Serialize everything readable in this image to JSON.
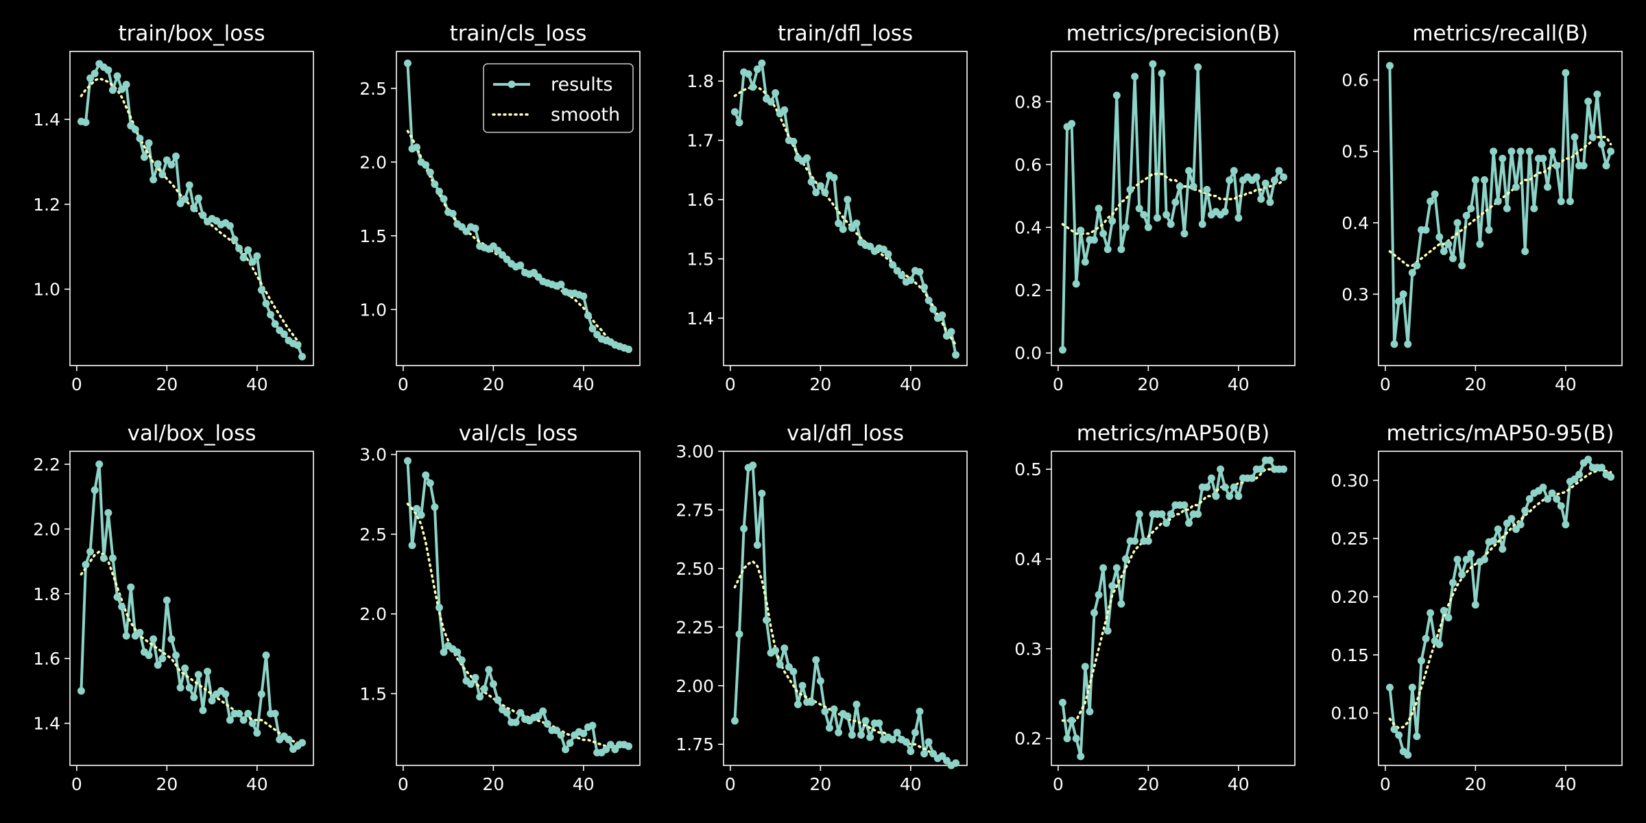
{
  "chart_data": {
    "type": "line",
    "colors": {
      "results": "#8dd3c7",
      "smooth": "#ffffb3",
      "background": "#000000",
      "axes": "#ffffff"
    },
    "legend": {
      "panel": "train/cls_loss",
      "placement": "top-right",
      "entries": [
        "results",
        "smooth"
      ]
    },
    "x": [
      1,
      2,
      3,
      4,
      5,
      6,
      7,
      8,
      9,
      10,
      11,
      12,
      13,
      14,
      15,
      16,
      17,
      18,
      19,
      20,
      21,
      22,
      23,
      24,
      25,
      26,
      27,
      28,
      29,
      30,
      31,
      32,
      33,
      34,
      35,
      36,
      37,
      38,
      39,
      40,
      41,
      42,
      43,
      44,
      45,
      46,
      47,
      48,
      49,
      50
    ],
    "xticks": [
      0,
      20,
      40
    ],
    "xlim": [
      -1.5,
      52.5
    ],
    "panels": [
      {
        "title": "train/box_loss",
        "ylim": [
          0.82,
          1.56
        ],
        "yticks": [
          "1.0",
          "1.2",
          "1.4"
        ],
        "results": [
          1.395,
          1.393,
          1.497,
          1.508,
          1.531,
          1.523,
          1.516,
          1.469,
          1.502,
          1.471,
          1.482,
          1.385,
          1.376,
          1.355,
          1.311,
          1.344,
          1.258,
          1.295,
          1.27,
          1.304,
          1.293,
          1.313,
          1.202,
          1.212,
          1.245,
          1.19,
          1.214,
          1.174,
          1.159,
          1.166,
          1.161,
          1.152,
          1.156,
          1.149,
          1.117,
          1.096,
          1.074,
          1.092,
          1.064,
          1.078,
          0.998,
          0.966,
          0.94,
          0.918,
          0.903,
          0.894,
          0.879,
          0.872,
          0.868,
          0.841
        ],
        "smooth": [
          1.455,
          1.47,
          1.48,
          1.492,
          1.496,
          1.493,
          1.488,
          1.48,
          1.469,
          1.452,
          1.428,
          1.404,
          1.38,
          1.356,
          1.336,
          1.316,
          1.298,
          1.284,
          1.272,
          1.26,
          1.249,
          1.236,
          1.222,
          1.21,
          1.2,
          1.19,
          1.18,
          1.17,
          1.16,
          1.15,
          1.141,
          1.132,
          1.124,
          1.116,
          1.107,
          1.097,
          1.084,
          1.068,
          1.05,
          1.031,
          1.012,
          0.993,
          0.974,
          0.956,
          0.939,
          0.922,
          0.906,
          0.892,
          0.878,
          0.866
        ]
      },
      {
        "title": "train/cls_loss",
        "ylim": [
          0.62,
          2.75
        ],
        "yticks": [
          "1.0",
          "1.5",
          "2.0",
          "2.5"
        ],
        "results": [
          2.67,
          2.09,
          2.1,
          2.0,
          1.98,
          1.93,
          1.85,
          1.8,
          1.75,
          1.66,
          1.65,
          1.58,
          1.56,
          1.53,
          1.56,
          1.55,
          1.43,
          1.42,
          1.41,
          1.43,
          1.4,
          1.37,
          1.34,
          1.31,
          1.29,
          1.3,
          1.25,
          1.24,
          1.25,
          1.22,
          1.19,
          1.18,
          1.17,
          1.16,
          1.17,
          1.12,
          1.11,
          1.11,
          1.1,
          1.09,
          0.96,
          0.87,
          0.83,
          0.8,
          0.79,
          0.78,
          0.76,
          0.75,
          0.74,
          0.73
        ],
        "smooth": [
          2.21,
          2.16,
          2.1,
          2.03,
          1.96,
          1.9,
          1.84,
          1.78,
          1.72,
          1.68,
          1.63,
          1.59,
          1.56,
          1.53,
          1.51,
          1.48,
          1.46,
          1.44,
          1.41,
          1.39,
          1.37,
          1.35,
          1.33,
          1.31,
          1.29,
          1.28,
          1.26,
          1.24,
          1.23,
          1.21,
          1.2,
          1.18,
          1.17,
          1.15,
          1.13,
          1.11,
          1.09,
          1.07,
          1.04,
          1.01,
          0.97,
          0.93,
          0.89,
          0.86,
          0.82,
          0.79,
          0.77,
          0.75,
          0.74,
          0.73
        ]
      },
      {
        "title": "train/dfl_loss",
        "ylim": [
          1.32,
          1.85
        ],
        "yticks": [
          "1.4",
          "1.5",
          "1.6",
          "1.7",
          "1.8"
        ],
        "results": [
          1.748,
          1.73,
          1.815,
          1.812,
          1.79,
          1.82,
          1.83,
          1.77,
          1.765,
          1.78,
          1.745,
          1.751,
          1.7,
          1.698,
          1.67,
          1.665,
          1.67,
          1.63,
          1.612,
          1.623,
          1.612,
          1.641,
          1.637,
          1.56,
          1.55,
          1.6,
          1.552,
          1.56,
          1.528,
          1.523,
          1.521,
          1.513,
          1.518,
          1.516,
          1.508,
          1.49,
          1.48,
          1.472,
          1.461,
          1.464,
          1.48,
          1.478,
          1.452,
          1.43,
          1.415,
          1.4,
          1.405,
          1.37,
          1.377,
          1.338
        ],
        "smooth": [
          1.775,
          1.78,
          1.785,
          1.788,
          1.79,
          1.79,
          1.785,
          1.778,
          1.768,
          1.755,
          1.74,
          1.723,
          1.706,
          1.69,
          1.676,
          1.663,
          1.651,
          1.64,
          1.629,
          1.619,
          1.61,
          1.6,
          1.59,
          1.58,
          1.57,
          1.561,
          1.552,
          1.543,
          1.535,
          1.528,
          1.522,
          1.516,
          1.511,
          1.505,
          1.499,
          1.493,
          1.486,
          1.479,
          1.472,
          1.466,
          1.46,
          1.453,
          1.444,
          1.433,
          1.42,
          1.406,
          1.392,
          1.378,
          1.366,
          1.355
        ]
      },
      {
        "title": "metrics/precision(B)",
        "ylim": [
          -0.04,
          0.96
        ],
        "yticks": [
          "0.0",
          "0.2",
          "0.4",
          "0.6",
          "0.8"
        ],
        "results": [
          0.01,
          0.72,
          0.73,
          0.22,
          0.39,
          0.29,
          0.36,
          0.36,
          0.46,
          0.38,
          0.33,
          0.42,
          0.82,
          0.33,
          0.4,
          0.52,
          0.88,
          0.46,
          0.44,
          0.4,
          0.92,
          0.43,
          0.89,
          0.44,
          0.41,
          0.48,
          0.53,
          0.38,
          0.58,
          0.53,
          0.91,
          0.41,
          0.52,
          0.44,
          0.45,
          0.44,
          0.45,
          0.55,
          0.58,
          0.43,
          0.55,
          0.56,
          0.55,
          0.56,
          0.49,
          0.54,
          0.48,
          0.55,
          0.58,
          0.56
        ],
        "smooth": [
          0.41,
          0.4,
          0.39,
          0.38,
          0.38,
          0.38,
          0.38,
          0.39,
          0.4,
          0.41,
          0.43,
          0.44,
          0.46,
          0.48,
          0.49,
          0.51,
          0.53,
          0.54,
          0.55,
          0.56,
          0.57,
          0.57,
          0.57,
          0.56,
          0.55,
          0.55,
          0.54,
          0.53,
          0.53,
          0.52,
          0.52,
          0.51,
          0.51,
          0.5,
          0.5,
          0.49,
          0.49,
          0.49,
          0.49,
          0.5,
          0.5,
          0.51,
          0.51,
          0.52,
          0.52,
          0.53,
          0.53,
          0.54,
          0.54,
          0.55
        ]
      },
      {
        "title": "metrics/recall(B)",
        "ylim": [
          0.2,
          0.64
        ],
        "yticks": [
          "0.3",
          "0.4",
          "0.5",
          "0.6"
        ],
        "results": [
          0.62,
          0.23,
          0.29,
          0.3,
          0.23,
          0.33,
          0.34,
          0.39,
          0.39,
          0.43,
          0.44,
          0.38,
          0.36,
          0.37,
          0.35,
          0.4,
          0.34,
          0.41,
          0.42,
          0.46,
          0.37,
          0.46,
          0.39,
          0.5,
          0.43,
          0.49,
          0.42,
          0.5,
          0.45,
          0.5,
          0.36,
          0.5,
          0.42,
          0.49,
          0.49,
          0.45,
          0.5,
          0.48,
          0.43,
          0.61,
          0.43,
          0.52,
          0.48,
          0.48,
          0.57,
          0.52,
          0.58,
          0.51,
          0.48,
          0.5
        ],
        "smooth": [
          0.36,
          0.355,
          0.35,
          0.345,
          0.34,
          0.34,
          0.345,
          0.35,
          0.355,
          0.36,
          0.365,
          0.37,
          0.37,
          0.375,
          0.38,
          0.385,
          0.39,
          0.395,
          0.4,
          0.405,
          0.41,
          0.415,
          0.42,
          0.425,
          0.43,
          0.435,
          0.44,
          0.445,
          0.45,
          0.455,
          0.46,
          0.46,
          0.465,
          0.47,
          0.47,
          0.475,
          0.48,
          0.48,
          0.485,
          0.49,
          0.49,
          0.495,
          0.5,
          0.505,
          0.51,
          0.515,
          0.52,
          0.52,
          0.52,
          0.51
        ]
      },
      {
        "title": "val/box_loss",
        "ylim": [
          1.27,
          2.24
        ],
        "yticks": [
          "1.4",
          "1.6",
          "1.8",
          "2.0",
          "2.2"
        ],
        "results": [
          1.5,
          1.89,
          1.93,
          2.12,
          2.2,
          1.91,
          2.05,
          1.91,
          1.79,
          1.76,
          1.67,
          1.82,
          1.67,
          1.68,
          1.62,
          1.61,
          1.66,
          1.58,
          1.6,
          1.78,
          1.66,
          1.61,
          1.51,
          1.57,
          1.51,
          1.48,
          1.55,
          1.44,
          1.56,
          1.47,
          1.49,
          1.5,
          1.49,
          1.41,
          1.43,
          1.43,
          1.41,
          1.43,
          1.4,
          1.37,
          1.49,
          1.61,
          1.43,
          1.43,
          1.35,
          1.36,
          1.35,
          1.32,
          1.33,
          1.34
        ],
        "smooth": [
          1.86,
          1.88,
          1.9,
          1.92,
          1.93,
          1.92,
          1.9,
          1.86,
          1.82,
          1.78,
          1.74,
          1.71,
          1.69,
          1.67,
          1.66,
          1.65,
          1.64,
          1.63,
          1.62,
          1.61,
          1.6,
          1.58,
          1.56,
          1.55,
          1.54,
          1.53,
          1.52,
          1.51,
          1.5,
          1.49,
          1.48,
          1.47,
          1.46,
          1.45,
          1.44,
          1.43,
          1.43,
          1.42,
          1.41,
          1.41,
          1.41,
          1.4,
          1.39,
          1.38,
          1.37,
          1.36,
          1.35,
          1.345,
          1.34,
          1.335
        ]
      },
      {
        "title": "val/cls_loss",
        "ylim": [
          1.05,
          3.02
        ],
        "yticks": [
          "1.5",
          "2.0",
          "2.5",
          "3.0"
        ],
        "results": [
          2.96,
          2.43,
          2.66,
          2.62,
          2.87,
          2.82,
          2.67,
          2.04,
          1.76,
          1.8,
          1.78,
          1.76,
          1.71,
          1.58,
          1.56,
          1.6,
          1.48,
          1.53,
          1.65,
          1.56,
          1.46,
          1.4,
          1.38,
          1.32,
          1.32,
          1.38,
          1.34,
          1.33,
          1.35,
          1.36,
          1.39,
          1.31,
          1.27,
          1.27,
          1.24,
          1.15,
          1.19,
          1.24,
          1.26,
          1.25,
          1.29,
          1.3,
          1.13,
          1.13,
          1.15,
          1.18,
          1.15,
          1.18,
          1.18,
          1.17
        ],
        "smooth": [
          2.69,
          2.66,
          2.62,
          2.56,
          2.45,
          2.3,
          2.15,
          2.01,
          1.9,
          1.83,
          1.77,
          1.72,
          1.68,
          1.64,
          1.61,
          1.57,
          1.54,
          1.51,
          1.49,
          1.47,
          1.45,
          1.43,
          1.41,
          1.4,
          1.38,
          1.37,
          1.36,
          1.35,
          1.34,
          1.33,
          1.32,
          1.31,
          1.3,
          1.28,
          1.27,
          1.25,
          1.24,
          1.23,
          1.22,
          1.21,
          1.21,
          1.2,
          1.19,
          1.18,
          1.17,
          1.17,
          1.17,
          1.17,
          1.17,
          1.17
        ]
      },
      {
        "title": "val/dfl_loss",
        "ylim": [
          1.66,
          3.0
        ],
        "yticks": [
          "1.75",
          "2.00",
          "2.25",
          "2.50",
          "2.75",
          "3.00"
        ],
        "results": [
          1.85,
          2.22,
          2.67,
          2.93,
          2.94,
          2.6,
          2.82,
          2.28,
          2.14,
          2.15,
          2.09,
          2.16,
          2.08,
          2.06,
          1.92,
          2.0,
          1.93,
          1.93,
          2.11,
          2.02,
          1.89,
          1.82,
          1.9,
          1.8,
          1.88,
          1.87,
          1.79,
          1.92,
          1.79,
          1.85,
          1.78,
          1.84,
          1.84,
          1.77,
          1.78,
          1.77,
          1.8,
          1.77,
          1.76,
          1.72,
          1.8,
          1.89,
          1.71,
          1.76,
          1.71,
          1.69,
          1.7,
          1.68,
          1.66,
          1.67
        ],
        "smooth": [
          2.42,
          2.46,
          2.5,
          2.52,
          2.53,
          2.51,
          2.45,
          2.36,
          2.25,
          2.16,
          2.1,
          2.06,
          2.03,
          2.0,
          1.97,
          1.96,
          1.95,
          1.94,
          1.93,
          1.92,
          1.91,
          1.9,
          1.89,
          1.88,
          1.87,
          1.86,
          1.85,
          1.85,
          1.84,
          1.83,
          1.82,
          1.81,
          1.8,
          1.8,
          1.79,
          1.78,
          1.77,
          1.76,
          1.76,
          1.75,
          1.75,
          1.74,
          1.73,
          1.72,
          1.71,
          1.7,
          1.69,
          1.68,
          1.67,
          1.665
        ]
      },
      {
        "title": "metrics/mAP50(B)",
        "ylim": [
          0.17,
          0.52
        ],
        "yticks": [
          "0.2",
          "0.3",
          "0.4",
          "0.5"
        ],
        "results": [
          0.24,
          0.2,
          0.22,
          0.2,
          0.18,
          0.28,
          0.23,
          0.34,
          0.36,
          0.39,
          0.32,
          0.37,
          0.39,
          0.35,
          0.4,
          0.42,
          0.42,
          0.45,
          0.42,
          0.42,
          0.45,
          0.45,
          0.45,
          0.44,
          0.45,
          0.46,
          0.46,
          0.46,
          0.44,
          0.45,
          0.45,
          0.48,
          0.48,
          0.49,
          0.47,
          0.5,
          0.48,
          0.47,
          0.48,
          0.47,
          0.49,
          0.49,
          0.49,
          0.5,
          0.5,
          0.51,
          0.51,
          0.5,
          0.5,
          0.5
        ],
        "smooth": [
          0.22,
          0.22,
          0.22,
          0.22,
          0.23,
          0.24,
          0.26,
          0.28,
          0.3,
          0.32,
          0.34,
          0.36,
          0.37,
          0.38,
          0.39,
          0.4,
          0.41,
          0.415,
          0.42,
          0.425,
          0.43,
          0.435,
          0.44,
          0.44,
          0.445,
          0.45,
          0.45,
          0.455,
          0.455,
          0.46,
          0.46,
          0.465,
          0.47,
          0.47,
          0.475,
          0.48,
          0.48,
          0.48,
          0.48,
          0.485,
          0.485,
          0.49,
          0.49,
          0.49,
          0.495,
          0.5,
          0.5,
          0.5,
          0.5,
          0.5
        ]
      },
      {
        "title": "metrics/mAP50-95(B)",
        "ylim": [
          0.055,
          0.325
        ],
        "yticks": [
          "0.10",
          "0.15",
          "0.20",
          "0.25",
          "0.30"
        ],
        "results": [
          0.122,
          0.086,
          0.081,
          0.067,
          0.064,
          0.122,
          0.08,
          0.145,
          0.164,
          0.186,
          0.162,
          0.159,
          0.188,
          0.182,
          0.212,
          0.232,
          0.219,
          0.232,
          0.237,
          0.193,
          0.23,
          0.232,
          0.247,
          0.248,
          0.258,
          0.241,
          0.263,
          0.267,
          0.258,
          0.262,
          0.274,
          0.284,
          0.289,
          0.291,
          0.294,
          0.284,
          0.289,
          0.284,
          0.278,
          0.262,
          0.299,
          0.301,
          0.305,
          0.315,
          0.318,
          0.311,
          0.311,
          0.311,
          0.305,
          0.303
        ],
        "smooth": [
          0.095,
          0.09,
          0.087,
          0.088,
          0.092,
          0.1,
          0.11,
          0.122,
          0.135,
          0.148,
          0.16,
          0.172,
          0.183,
          0.193,
          0.202,
          0.21,
          0.216,
          0.221,
          0.225,
          0.228,
          0.231,
          0.235,
          0.239,
          0.243,
          0.247,
          0.251,
          0.255,
          0.259,
          0.263,
          0.266,
          0.27,
          0.273,
          0.277,
          0.28,
          0.283,
          0.285,
          0.287,
          0.288,
          0.289,
          0.29,
          0.293,
          0.296,
          0.299,
          0.302,
          0.305,
          0.307,
          0.308,
          0.309,
          0.308,
          0.307
        ]
      }
    ]
  }
}
